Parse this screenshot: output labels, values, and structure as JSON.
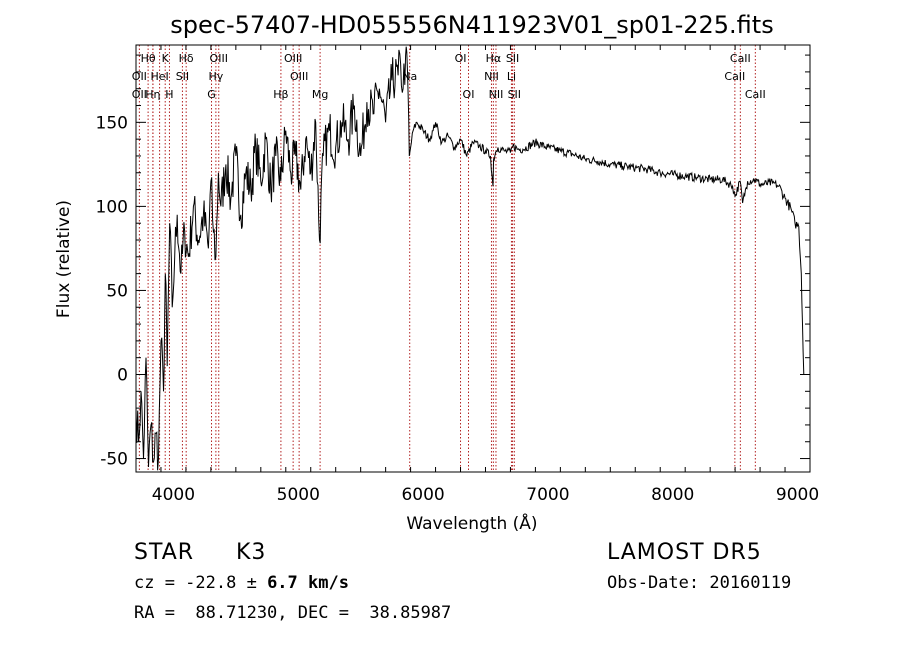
{
  "footer": {
    "class_label": "STAR",
    "subclass_label": "K3",
    "survey": "LAMOST DR5",
    "cz_prefix": "cz = -22.8 ± ",
    "cz_bold": "6.7 km/s",
    "obs_date": "Obs-Date: 20160119",
    "coords": "RA =  88.71230, DEC =  38.85987"
  },
  "chart_data": {
    "type": "line",
    "title": "spec-57407-HD055556N411923V01_sp01-225.fits",
    "xlabel": "Wavelength (Å)",
    "ylabel": "Flux (relative)",
    "xlim": [
      3700,
      9100
    ],
    "ylim": [
      -58,
      196
    ],
    "xticks": [
      4000,
      5000,
      6000,
      7000,
      8000,
      9000
    ],
    "xtick_labels": [
      "4000",
      "5000",
      "6000",
      "7000",
      "8000",
      "9000"
    ],
    "yticks": [
      -50,
      0,
      50,
      100,
      150
    ],
    "ytick_labels": [
      "-50",
      "0",
      "50",
      "100",
      "150"
    ],
    "grid": false,
    "line_color": "#000000",
    "marker_color": "#b22222",
    "series": [
      {
        "x": [
          3700,
          3720,
          3740,
          3760,
          3780,
          3800,
          3820,
          3840,
          3860,
          3880,
          3900,
          3920,
          3935,
          3950,
          3970,
          3990,
          4010,
          4030,
          4060,
          4090,
          4120,
          4160,
          4200,
          4240,
          4280,
          4300,
          4320,
          4340,
          4360,
          4380,
          4420,
          4460,
          4500,
          4540,
          4580,
          4620,
          4660,
          4700,
          4740,
          4780,
          4820,
          4860,
          4900,
          4940,
          4980,
          5020,
          5060,
          5100,
          5140,
          5170,
          5200,
          5250,
          5300,
          5350,
          5400,
          5450,
          5500,
          5550,
          5600,
          5650,
          5700,
          5750,
          5800,
          5820,
          5840,
          5860,
          5875,
          5890,
          5900,
          5920,
          5950,
          6000,
          6050,
          6080,
          6100,
          6150,
          6200,
          6250,
          6300,
          6350,
          6400,
          6450,
          6500,
          6540,
          6560,
          6565,
          6580,
          6600,
          6650,
          6700,
          6720,
          6760,
          6800,
          6900,
          7000,
          7100,
          7200,
          7300,
          7400,
          7500,
          7600,
          7700,
          7800,
          7900,
          8000,
          8100,
          8200,
          8300,
          8400,
          8480,
          8500,
          8540,
          8560,
          8600,
          8660,
          8700,
          8800,
          8850,
          8900,
          8950,
          8980,
          9010,
          9030,
          9040,
          9050
        ],
        "y": [
          -20,
          -40,
          -10,
          -50,
          10,
          -55,
          -30,
          -52,
          -35,
          -50,
          20,
          -10,
          60,
          5,
          90,
          40,
          70,
          95,
          60,
          85,
          70,
          100,
          80,
          95,
          75,
          115,
          85,
          70,
          120,
          100,
          125,
          105,
          130,
          95,
          120,
          110,
          135,
          115,
          140,
          110,
          130,
          115,
          145,
          120,
          130,
          110,
          140,
          120,
          150,
          80,
          130,
          145,
          135,
          150,
          140,
          160,
          130,
          162,
          155,
          170,
          150,
          175,
          178,
          185,
          170,
          190,
          180,
          130,
          135,
          145,
          150,
          145,
          140,
          145,
          150,
          138,
          142,
          135,
          140,
          130,
          138,
          136,
          133,
          130,
          112,
          128,
          132,
          135,
          133,
          132,
          136,
          134,
          134,
          138,
          135,
          133,
          131,
          128,
          127,
          125,
          124,
          123,
          122,
          120,
          119,
          118,
          117,
          116,
          116,
          112,
          106,
          115,
          102,
          115,
          116,
          113,
          114,
          112,
          105,
          98,
          90,
          88,
          60,
          30,
          0
        ]
      }
    ],
    "line_markers": [
      {
        "wavelength": 3797,
        "label": "Hθ",
        "row": 0
      },
      {
        "wavelength": 3836,
        "label": "",
        "row": 0
      },
      {
        "wavelength": 3934,
        "label": "K",
        "row": 0
      },
      {
        "wavelength": 4102,
        "label": "Hδ",
        "row": 0
      },
      {
        "wavelength": 4363,
        "label": "OIII",
        "row": 0
      },
      {
        "wavelength": 4959,
        "label": "OIII",
        "row": 0
      },
      {
        "wavelength": 6300,
        "label": "OI",
        "row": 0
      },
      {
        "wavelength": 6563,
        "label": "Hα",
        "row": 0
      },
      {
        "wavelength": 6717,
        "label": "SII",
        "row": 0
      },
      {
        "wavelength": 8542,
        "label": "CaII",
        "row": 0
      },
      {
        "wavelength": 3727,
        "label": "OII",
        "row": 1
      },
      {
        "wavelength": 3889,
        "label": "HeI",
        "row": 1
      },
      {
        "wavelength": 4072,
        "label": "SII",
        "row": 1
      },
      {
        "wavelength": 4340,
        "label": "Hγ",
        "row": 1
      },
      {
        "wavelength": 5007,
        "label": "OIII",
        "row": 1
      },
      {
        "wavelength": 5893,
        "label": "Na",
        "row": 1
      },
      {
        "wavelength": 6548,
        "label": "NII",
        "row": 1
      },
      {
        "wavelength": 6708,
        "label": "Li",
        "row": 1
      },
      {
        "wavelength": 8498,
        "label": "CaII",
        "row": 1
      },
      {
        "wavelength": 3727,
        "label": "OII",
        "row": 2
      },
      {
        "wavelength": 3835,
        "label": "Hη",
        "row": 2
      },
      {
        "wavelength": 3968,
        "label": "H",
        "row": 2
      },
      {
        "wavelength": 4305,
        "label": "G",
        "row": 2
      },
      {
        "wavelength": 4861,
        "label": "Hβ",
        "row": 2
      },
      {
        "wavelength": 5175,
        "label": "Mg",
        "row": 2
      },
      {
        "wavelength": 6364,
        "label": "OI",
        "row": 2
      },
      {
        "wavelength": 6584,
        "label": "NII",
        "row": 2
      },
      {
        "wavelength": 6731,
        "label": "SII",
        "row": 2
      },
      {
        "wavelength": 8662,
        "label": "CaII",
        "row": 2
      }
    ]
  }
}
